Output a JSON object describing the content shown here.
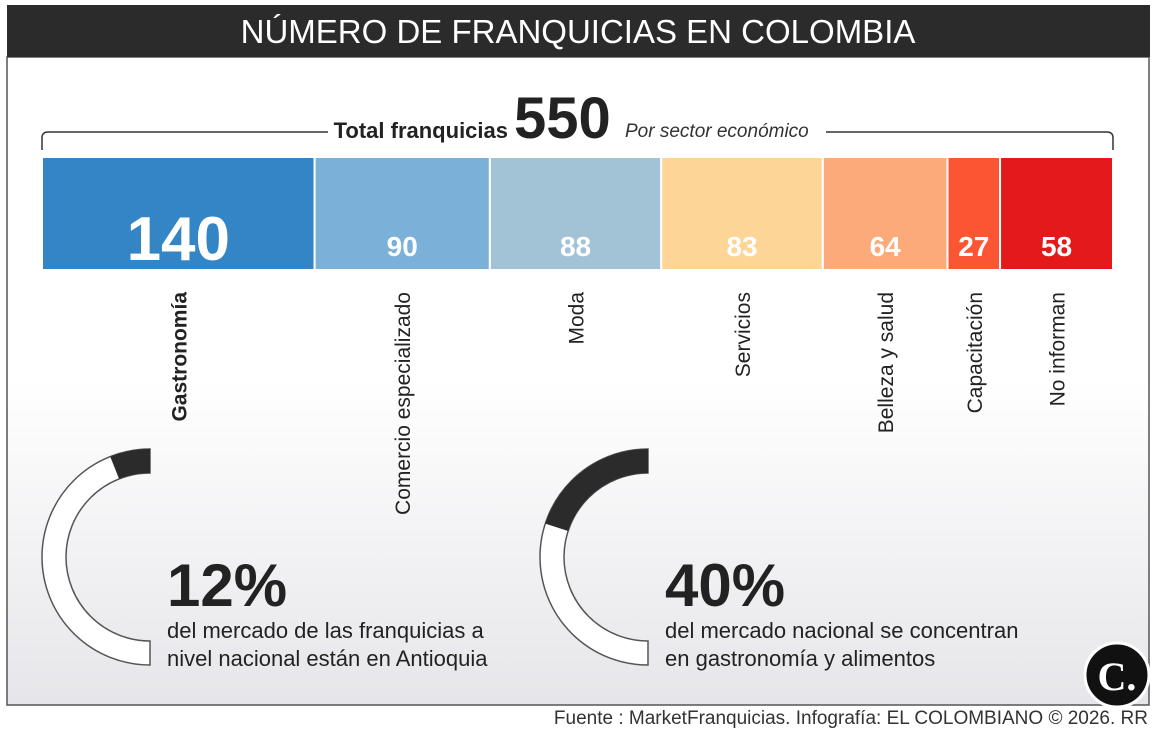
{
  "header": {
    "title": "NÚMERO DE FRANQUICIAS EN COLOMBIA"
  },
  "total": {
    "label": "Total franquicias",
    "value": 550,
    "subtitle": "Por sector económico"
  },
  "chart_data": {
    "type": "stacked-bar",
    "categories": [
      "Gastronomía",
      "Comercio especializado",
      "Moda",
      "Servicios",
      "Belleza y salud",
      "Capacitación",
      "No informan"
    ],
    "values": [
      140,
      90,
      88,
      83,
      64,
      27,
      58
    ],
    "colors": [
      "#3385c6",
      "#7bb0d9",
      "#a2c3d5",
      "#fdd596",
      "#fdaa7a",
      "#fb5634",
      "#e3191b"
    ]
  },
  "gauges": [
    {
      "value": 12,
      "label": "12%",
      "text": [
        "del mercado de las franquicias a",
        "nivel nacional están en Antioquia"
      ]
    },
    {
      "value": 40,
      "label": "40%",
      "text": [
        "del mercado nacional se concentran",
        "en gastronomía y alimentos"
      ]
    }
  ],
  "logo": "C.",
  "source": "Fuente : MarketFranquicias. Infografía: EL COLOMBIANO © 2026. RR"
}
